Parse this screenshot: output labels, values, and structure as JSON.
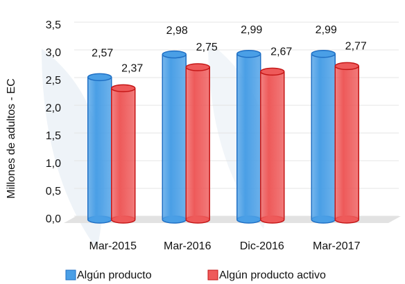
{
  "chart_data": {
    "type": "bar",
    "y_label": "Millones de adultos - EC",
    "categories": [
      "Mar-2015",
      "Mar-2016",
      "Dic-2016",
      "Mar-2017"
    ],
    "series": [
      {
        "name": "Algún producto",
        "color": "#4a9fe6",
        "values": [
          2.57,
          2.98,
          2.99,
          2.99
        ],
        "value_labels": [
          "2,57",
          "2,98",
          "2,99",
          "2,99"
        ]
      },
      {
        "name": "Algún producto activo",
        "color": "#ee5a5a",
        "values": [
          2.37,
          2.75,
          2.67,
          2.77
        ],
        "value_labels": [
          "2,37",
          "2,75",
          "2,67",
          "2,77"
        ]
      }
    ],
    "ylim": [
      0,
      3.5
    ],
    "yticks": [
      {
        "value": 0,
        "label": "0,0"
      },
      {
        "value": 0.5,
        "label": "0,5"
      },
      {
        "value": 1,
        "label": "1,0"
      },
      {
        "value": 1.5,
        "label": "1,5"
      },
      {
        "value": 2,
        "label": "2,0"
      },
      {
        "value": 2.5,
        "label": "2,5"
      },
      {
        "value": 3,
        "label": "3,0"
      },
      {
        "value": 3.5,
        "label": "3,5"
      }
    ],
    "grid": true
  }
}
